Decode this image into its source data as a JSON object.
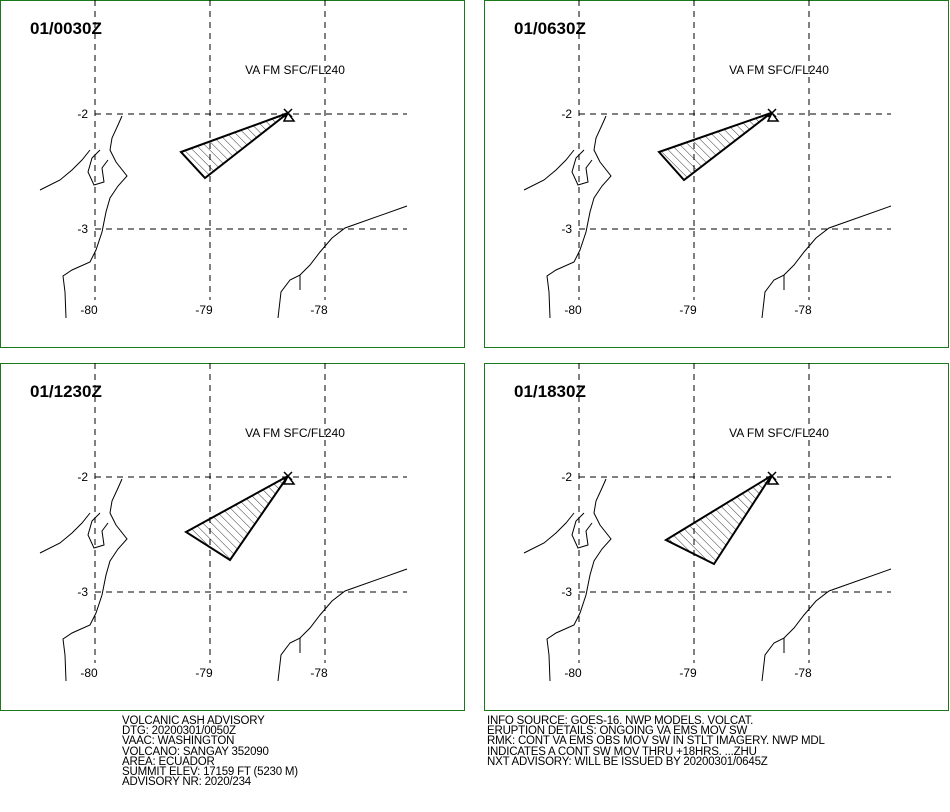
{
  "panels": [
    {
      "time": "01/0030Z",
      "label": "VA FM SFC/FL240",
      "lat_labels": [
        "-2",
        "-3"
      ],
      "lon_labels": [
        "-80",
        "-79",
        "-78"
      ]
    },
    {
      "time": "01/0630Z",
      "label": "VA FM SFC/FL240",
      "lat_labels": [
        "-2",
        "-3"
      ],
      "lon_labels": [
        "-80",
        "-79",
        "-78"
      ]
    },
    {
      "time": "01/1230Z",
      "label": "VA FM SFC/FL240",
      "lat_labels": [
        "-2",
        "-3"
      ],
      "lon_labels": [
        "-80",
        "-79",
        "-78"
      ]
    },
    {
      "time": "01/1830Z",
      "label": "VA FM SFC/FL240",
      "lat_labels": [
        "-2",
        "-3"
      ],
      "lon_labels": [
        "-80",
        "-79",
        "-78"
      ]
    }
  ],
  "footer": {
    "left": [
      "VOLCANIC ASH ADVISORY",
      "DTG: 20200301/0050Z",
      "VAAC: WASHINGTON",
      "VOLCANO: SANGAY 352090",
      "AREA: ECUADOR",
      "SUMMIT ELEV: 17159 FT (5230 M)",
      "ADVISORY NR: 2020/234"
    ],
    "right": [
      "INFO SOURCE: GOES-16. NWP MODELS. VOLCAT.",
      "ERUPTION DETAILS: ONGOING VA EMS MOV SW",
      "RMK: CONT VA EMS OBS MOV SW IN STLT IMAGERY. NWP MDL",
      "INDICATES A CONT SW MOV THRU +18HRS. ...ZHU",
      "NXT ADVISORY: WILL BE ISSUED BY 20200301/0645Z"
    ]
  }
}
